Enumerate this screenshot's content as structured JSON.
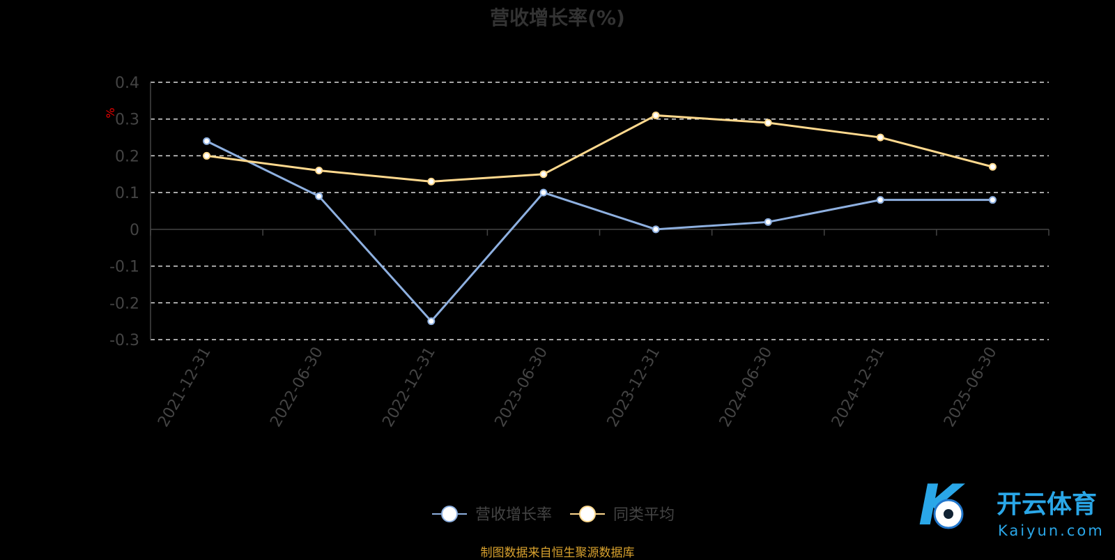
{
  "chart_data": {
    "type": "line",
    "title": "营收增长率(%)",
    "ylabel": "%",
    "categories": [
      "2021-12-31",
      "2022-06-30",
      "2022-12-31",
      "2023-06-30",
      "2023-12-31",
      "2024-06-30",
      "2024-12-31",
      "2025-06-30"
    ],
    "series": [
      {
        "name": "营收增长率",
        "color": "#8eb0e0",
        "values": [
          0.24,
          0.09,
          -0.25,
          0.1,
          0.0,
          0.02,
          0.08,
          0.08
        ]
      },
      {
        "name": "同类平均",
        "color": "#ffd98e",
        "values": [
          0.2,
          0.16,
          0.13,
          0.15,
          0.31,
          0.29,
          0.25,
          0.17
        ]
      }
    ],
    "ylim": [
      -0.3,
      0.4
    ],
    "yticks": [
      "0.4",
      "0.3",
      "0.2",
      "0.1",
      "0",
      "-0.1",
      "-0.2",
      "-0.3"
    ],
    "grid": true,
    "legend": "bottom"
  },
  "source": "制图数据来自恒生聚源数据库",
  "watermark": {
    "text": "开云体育",
    "subtext": "Kaiyun.com"
  }
}
